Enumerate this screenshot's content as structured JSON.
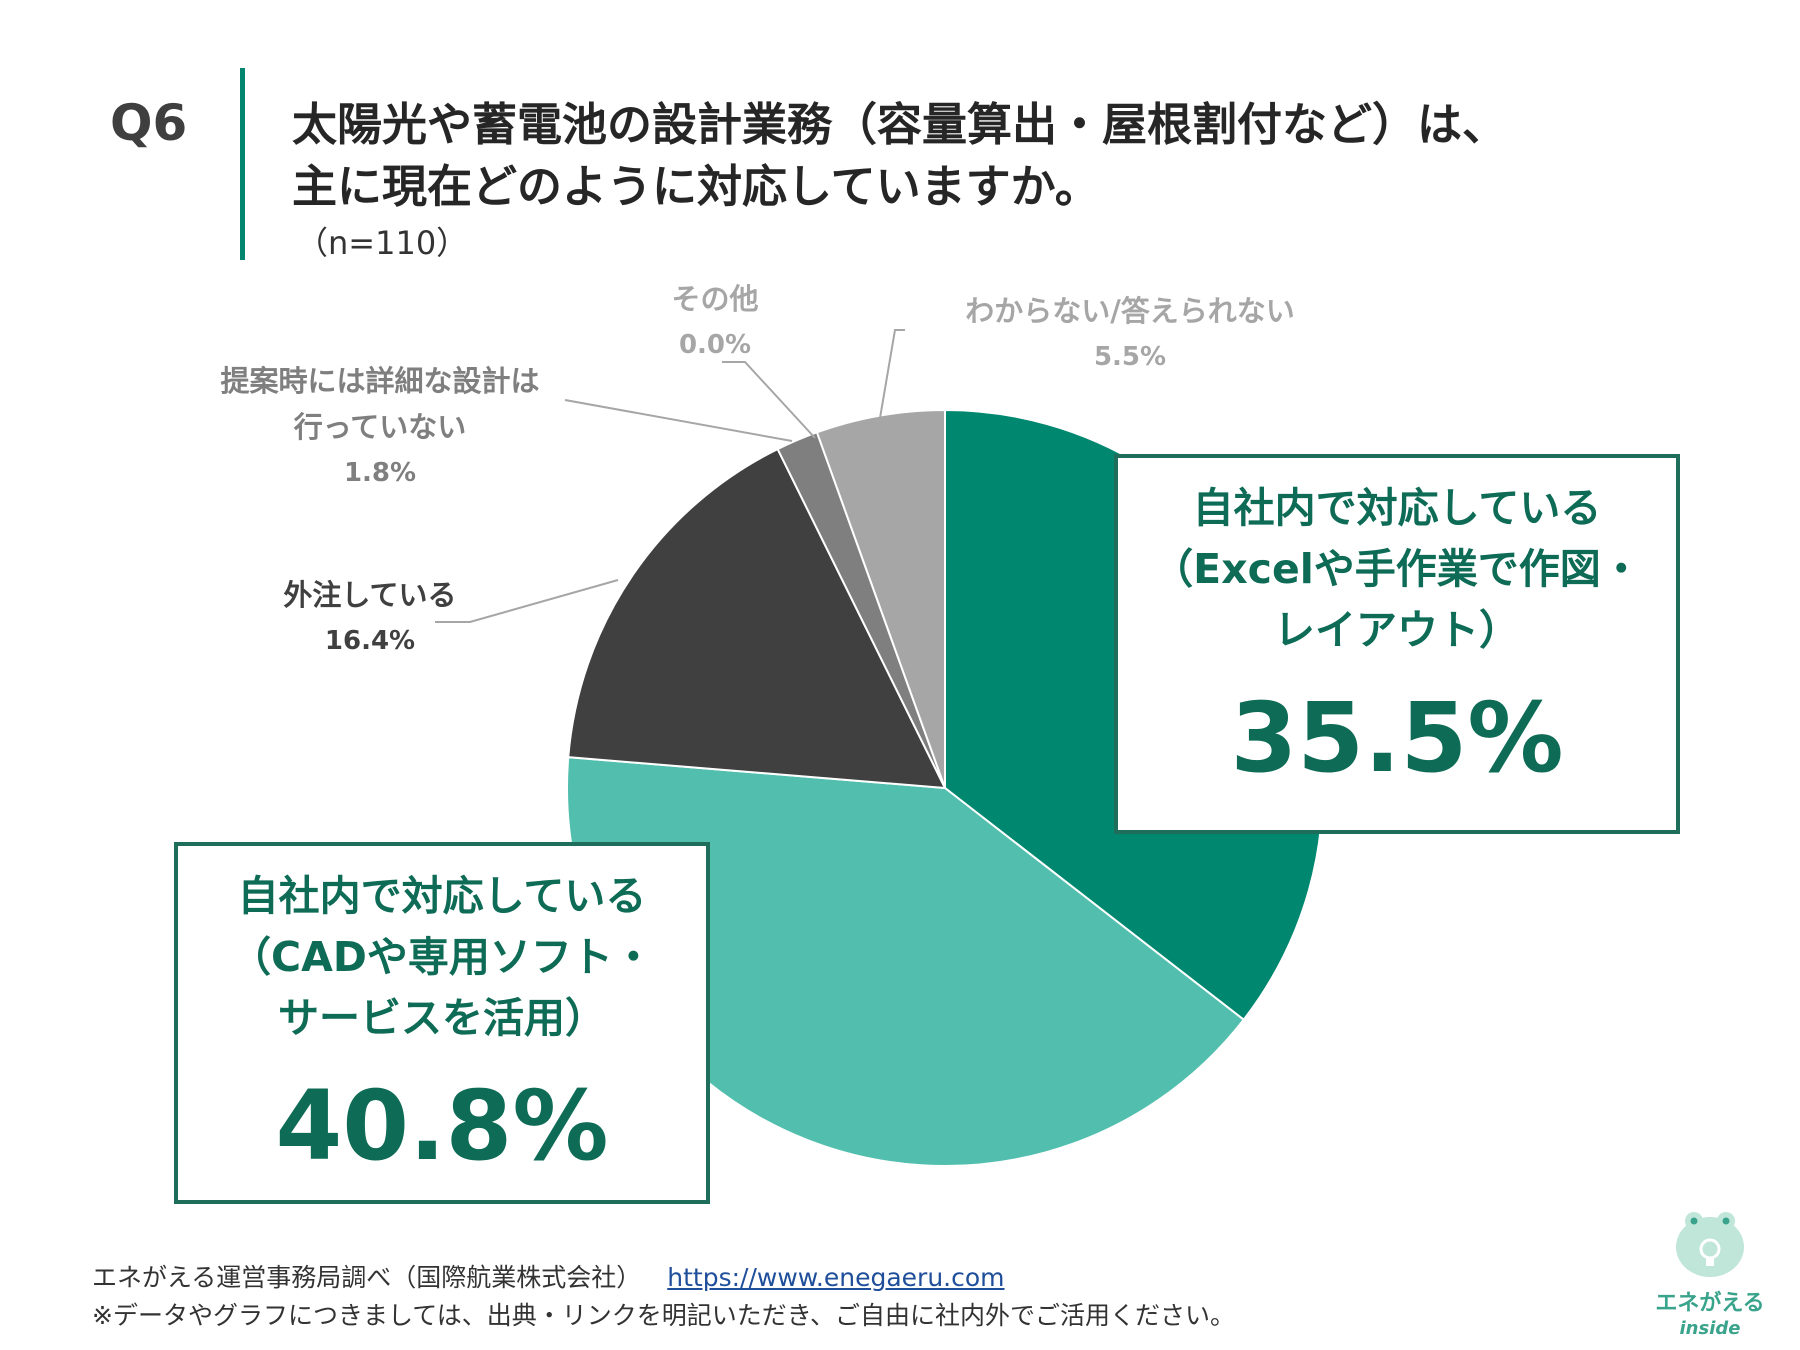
{
  "question": {
    "number": "Q6",
    "title_line1": "太陽光や蓄電池の設計業務（容量算出・屋根割付など）は、",
    "title_line2": "主に現在どのように対応していますか。",
    "n": "（n=110）"
  },
  "chart_data": {
    "type": "pie",
    "unit": "%",
    "slices": [
      {
        "label": "自社内で対応している（Excelや手作業で作図・レイアウト）",
        "value": 35.5,
        "color": "#00876f"
      },
      {
        "label": "自社内で対応している（CADや専用ソフト・サービスを活用）",
        "value": 40.8,
        "color": "#52bfae"
      },
      {
        "label": "外注している",
        "value": 16.4,
        "color": "#404040"
      },
      {
        "label": "提案時には詳細な設計は行っていない",
        "value": 1.8,
        "color": "#7f7f7f"
      },
      {
        "label": "その他",
        "value": 0.0,
        "color": "#bfbfbf"
      },
      {
        "label": "わからない/答えられない",
        "value": 5.5,
        "color": "#a6a6a6"
      }
    ]
  },
  "labels": {
    "excel": {
      "line1": "自社内で対応している",
      "line2": "（Excelや手作業で作図・",
      "line3": "レイアウト）",
      "value": "35.5%"
    },
    "cad": {
      "line1": "自社内で対応している",
      "line2": "（CADや専用ソフト・",
      "line3": "サービスを活用）",
      "value": "40.8%"
    },
    "outsource": {
      "name": "外注している",
      "value": "16.4%"
    },
    "nodesign": {
      "line1": "提案時には詳細な設計は",
      "line2": "行っていない",
      "value": "1.8%"
    },
    "other": {
      "name": "その他",
      "value": "0.0%"
    },
    "unknown": {
      "name": "わからない/答えられない",
      "value": "5.5%"
    }
  },
  "footer": {
    "source": "エネがえる運営事務局調べ（国際航業株式会社）",
    "url": "https://www.enegaeru.com",
    "note": "※データやグラフにつきましては、出典・リンクを明記いただき、ご自由に社内外でご活用ください。"
  },
  "logo": {
    "name": "エネがえる",
    "sub": "inside"
  }
}
